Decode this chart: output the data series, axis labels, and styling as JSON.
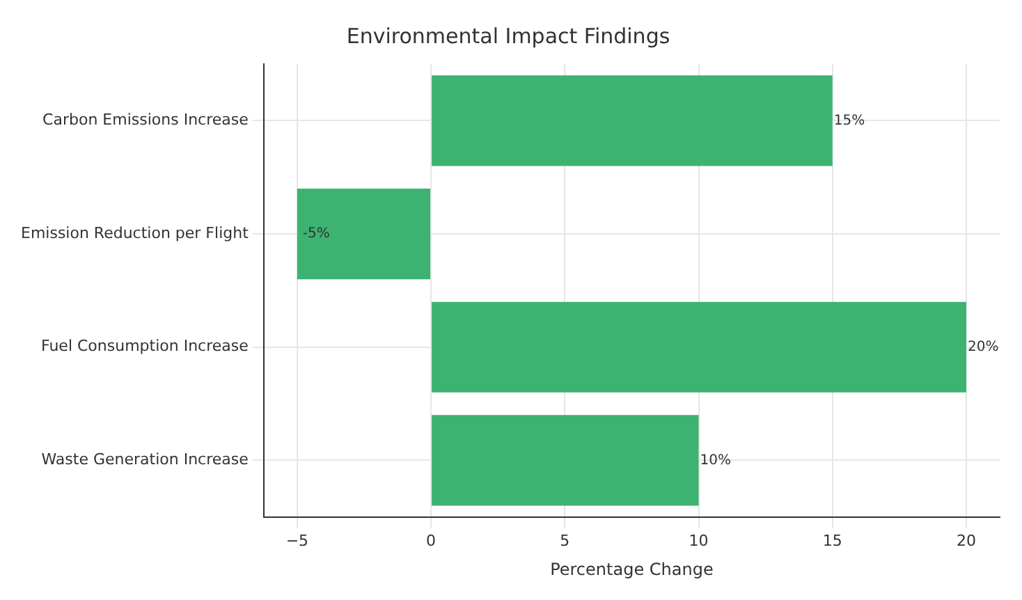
{
  "chart_data": {
    "type": "bar",
    "orientation": "horizontal",
    "title": "Environmental Impact Findings",
    "xlabel": "Percentage Change",
    "categories": [
      "Carbon Emissions Increase",
      "Emission Reduction per Flight",
      "Fuel Consumption Increase",
      "Waste Generation Increase"
    ],
    "values": [
      15,
      -5,
      20,
      10
    ],
    "value_labels": [
      "15%",
      "-5%",
      "20%",
      "10%"
    ],
    "color": "#3cb371",
    "xlim": [
      -6.25,
      21.25
    ],
    "xticks": [
      {
        "value": -5,
        "label": "−5"
      },
      0,
      5,
      10,
      15,
      20
    ],
    "grid": true
  }
}
